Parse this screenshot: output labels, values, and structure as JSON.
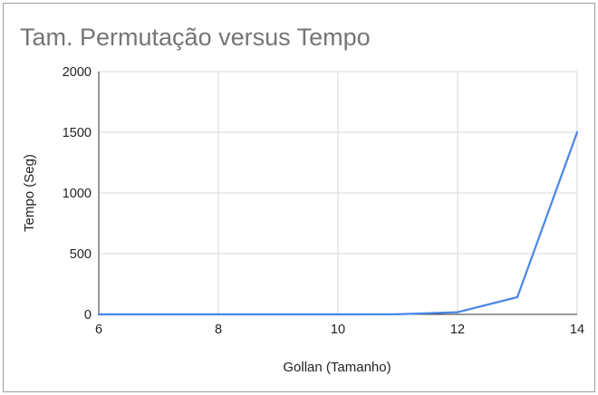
{
  "chart_data": {
    "type": "line",
    "title": "Tam. Permutação versus Tempo",
    "xlabel": "Gollan (Tamanho)",
    "ylabel": "Tempo (Seg)",
    "xlim": [
      6,
      14
    ],
    "ylim": [
      0,
      2000
    ],
    "x_ticks": [
      6,
      8,
      10,
      12,
      14
    ],
    "y_ticks": [
      0,
      500,
      1000,
      1500,
      2000
    ],
    "grid": true,
    "legend": "none",
    "series": [
      {
        "color": "#4a86e8",
        "x": [
          6,
          7,
          8,
          9,
          10,
          11,
          12,
          13,
          14
        ],
        "values": [
          0,
          0,
          0,
          0,
          0,
          1,
          18,
          142,
          1500
        ]
      }
    ]
  }
}
